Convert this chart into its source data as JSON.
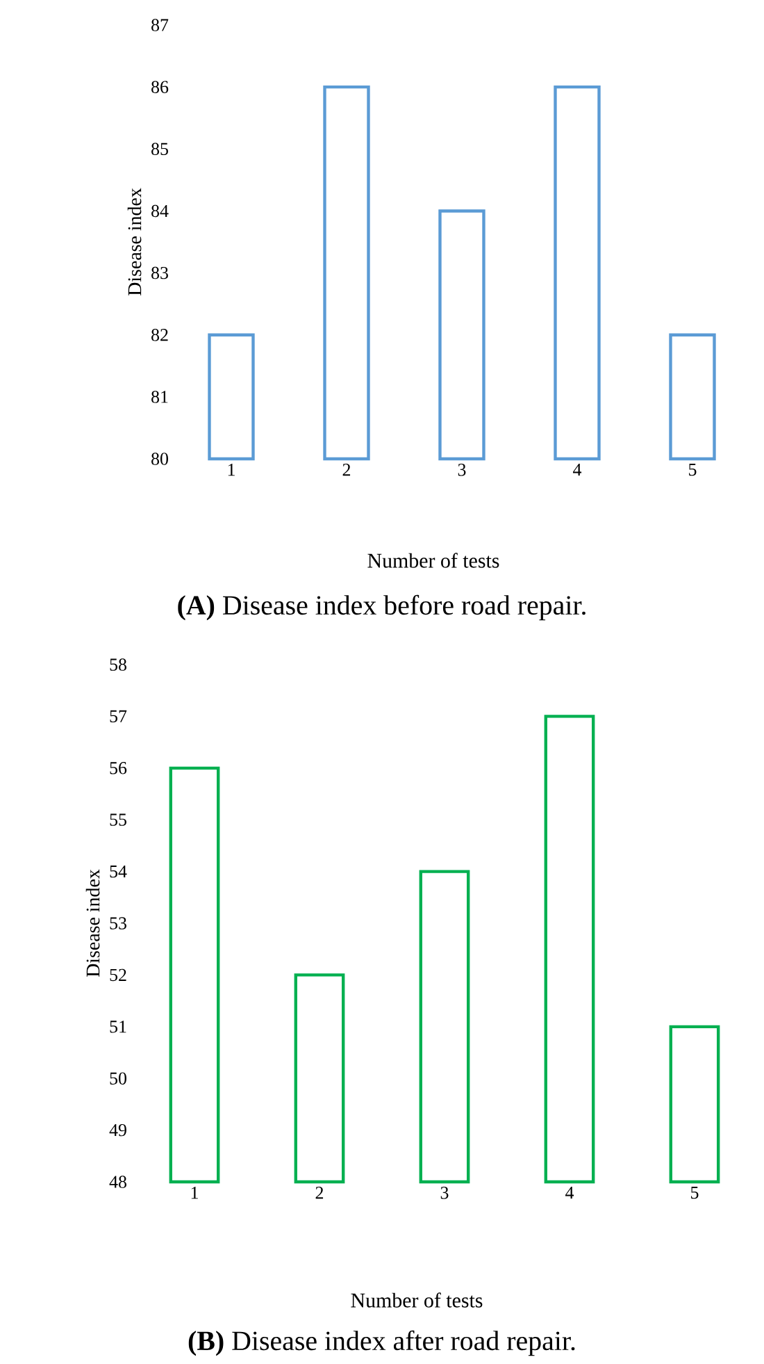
{
  "chart_data": [
    {
      "type": "bar",
      "title": "**(A)** Disease index before road repair.",
      "xlabel": "Number of tests",
      "ylabel": "Disease  index",
      "categories": [
        "1",
        "2",
        "3",
        "4",
        "5"
      ],
      "values": [
        82,
        86,
        84,
        86,
        82
      ],
      "color": "#5b9bd5",
      "ylim": [
        80,
        87
      ],
      "yticks": [
        80,
        81,
        82,
        83,
        84,
        85,
        86,
        87
      ],
      "grid": false
    },
    {
      "type": "bar",
      "title": "**(B)** Disease index after road repair.",
      "xlabel": "Number of tests",
      "ylabel": "Disease  index",
      "categories": [
        "1",
        "2",
        "3",
        "4",
        "5"
      ],
      "values": [
        56,
        52,
        54,
        57,
        51
      ],
      "color": "#00b050",
      "ylim": [
        48,
        58
      ],
      "yticks": [
        48,
        49,
        50,
        51,
        52,
        53,
        54,
        55,
        56,
        57,
        58
      ],
      "grid": false
    }
  ]
}
